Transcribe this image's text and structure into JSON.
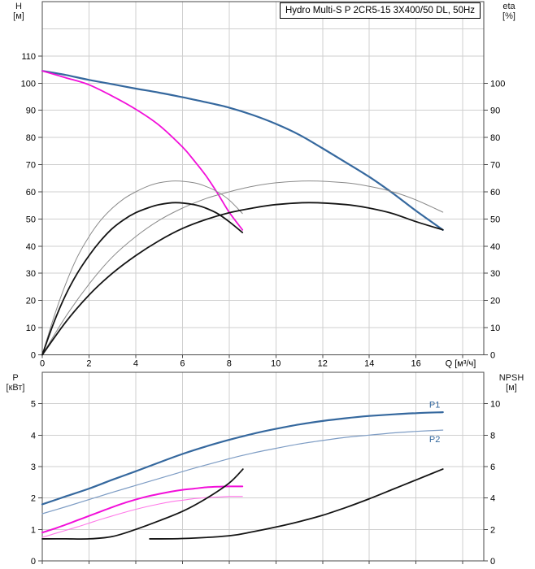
{
  "title": "Hydro Multi-S P 2CR5-15 3X400/50 DL, 50Hz",
  "colors": {
    "blue": "#35689e",
    "blue_light": "#7d9cc4",
    "magenta": "#f20fd9",
    "magenta_light": "#ff78e8",
    "black": "#141414",
    "gray": "#8a8a8a",
    "grid": "#cfcfcf",
    "axis": "#4a4a4a",
    "label": "#000000"
  },
  "chart_data": [
    {
      "type": "line",
      "id": "head-efficiency-chart",
      "title": "H-Q and efficiency curves",
      "x_axis": {
        "label": "Q [м³/ч]",
        "range": [
          0,
          18.9
        ],
        "grid_step": 2,
        "ticks": [
          0,
          2,
          4,
          6,
          8,
          10,
          12,
          14,
          16
        ],
        "show_tick_labels": true
      },
      "y_left": {
        "name": "H",
        "unit": "[м]",
        "range": [
          0,
          130
        ],
        "ticks": [
          0,
          10,
          20,
          30,
          40,
          50,
          60,
          70,
          80,
          90,
          100,
          110
        ],
        "grid": [
          10,
          20,
          30,
          40,
          50,
          60,
          70,
          80,
          90,
          100,
          110,
          120
        ]
      },
      "y_right": {
        "name": "eta",
        "unit": "[%]",
        "range": [
          0,
          130
        ],
        "ticks": [
          0,
          10,
          20,
          30,
          40,
          50,
          60,
          70,
          80,
          90,
          100
        ]
      },
      "series": [
        {
          "name": "head-two-pumps",
          "color": "blue",
          "width": 2.2,
          "axis": "left",
          "points": [
            [
              0,
              104.5
            ],
            [
              1,
              103
            ],
            [
              2,
              101.2
            ],
            [
              3,
              99.6
            ],
            [
              4,
              98
            ],
            [
              5,
              96.5
            ],
            [
              6,
              94.8
            ],
            [
              7,
              93
            ],
            [
              8,
              91
            ],
            [
              9,
              88.3
            ],
            [
              10,
              85
            ],
            [
              11,
              81
            ],
            [
              12,
              76
            ],
            [
              13,
              70.8
            ],
            [
              14,
              65.5
            ],
            [
              15,
              59.5
            ],
            [
              16,
              53
            ],
            [
              17.15,
              46
            ]
          ]
        },
        {
          "name": "head-one-pump",
          "color": "magenta",
          "width": 1.8,
          "axis": "left",
          "points": [
            [
              0,
              104.5
            ],
            [
              1,
              102
            ],
            [
              2,
              99.4
            ],
            [
              3,
              95.2
            ],
            [
              4,
              90.4
            ],
            [
              5,
              84.5
            ],
            [
              6,
              76.5
            ],
            [
              6.5,
              71.5
            ],
            [
              7,
              66
            ],
            [
              7.5,
              59.5
            ],
            [
              8,
              52.5
            ],
            [
              8.57,
              46
            ]
          ]
        },
        {
          "name": "eta-one-pump-upper",
          "color": "gray",
          "width": 1,
          "axis": "right",
          "points": [
            [
              0,
              0
            ],
            [
              0.5,
              14
            ],
            [
              1,
              26
            ],
            [
              1.5,
              36
            ],
            [
              2,
              43.5
            ],
            [
              2.5,
              49.5
            ],
            [
              3,
              54
            ],
            [
              3.5,
              57.5
            ],
            [
              4,
              60
            ],
            [
              4.5,
              62
            ],
            [
              5,
              63.3
            ],
            [
              5.7,
              64
            ],
            [
              6.5,
              63.3
            ],
            [
              7,
              62
            ],
            [
              7.5,
              60
            ],
            [
              8,
              57
            ],
            [
              8.57,
              52
            ]
          ]
        },
        {
          "name": "eta-two-pumps-upper",
          "color": "gray",
          "width": 1,
          "axis": "right",
          "points": [
            [
              0,
              0
            ],
            [
              1,
              14
            ],
            [
              2,
              26
            ],
            [
              3,
              36
            ],
            [
              4,
              43.5
            ],
            [
              5,
              49.5
            ],
            [
              6,
              54
            ],
            [
              7,
              57.5
            ],
            [
              8,
              60
            ],
            [
              9,
              62
            ],
            [
              10,
              63.3
            ],
            [
              11.4,
              64
            ],
            [
              13,
              63.3
            ],
            [
              14,
              62
            ],
            [
              15,
              60
            ],
            [
              16,
              57
            ],
            [
              17.15,
              52.5
            ]
          ]
        },
        {
          "name": "eta-one-pump-lower",
          "color": "black",
          "width": 1.8,
          "axis": "right",
          "points": [
            [
              0,
              0
            ],
            [
              0.5,
              12
            ],
            [
              1,
              22
            ],
            [
              1.5,
              30
            ],
            [
              2,
              36.5
            ],
            [
              2.5,
              42
            ],
            [
              3,
              46.5
            ],
            [
              3.5,
              49.8
            ],
            [
              4,
              52.3
            ],
            [
              4.5,
              54
            ],
            [
              5,
              55.3
            ],
            [
              5.7,
              56
            ],
            [
              6.5,
              55.3
            ],
            [
              7,
              54
            ],
            [
              7.5,
              52
            ],
            [
              8,
              49
            ],
            [
              8.57,
              45
            ]
          ]
        },
        {
          "name": "eta-two-pumps-lower",
          "color": "black",
          "width": 1.8,
          "axis": "right",
          "points": [
            [
              0,
              0
            ],
            [
              1,
              12
            ],
            [
              2,
              22
            ],
            [
              3,
              30
            ],
            [
              4,
              36.5
            ],
            [
              5,
              42
            ],
            [
              6,
              46.5
            ],
            [
              7,
              49.8
            ],
            [
              8,
              52.3
            ],
            [
              9,
              54
            ],
            [
              10,
              55.3
            ],
            [
              11.4,
              56
            ],
            [
              13,
              55.3
            ],
            [
              14,
              54
            ],
            [
              15,
              52
            ],
            [
              16,
              49
            ],
            [
              17.15,
              46
            ]
          ]
        }
      ],
      "annotations": []
    },
    {
      "type": "line",
      "id": "power-npsh-chart",
      "title": "Power and NPSH curves",
      "x_axis": {
        "label": "",
        "range": [
          0,
          18.9
        ],
        "grid_step": 2,
        "ticks": [
          0,
          2,
          4,
          6,
          8,
          10,
          12,
          14,
          16
        ],
        "show_tick_labels": false
      },
      "y_left": {
        "name": "P",
        "unit": "[кВт]",
        "range": [
          0,
          6
        ],
        "ticks": [
          0,
          1,
          2,
          3,
          4,
          5
        ],
        "grid": [
          1,
          2,
          3,
          4,
          5
        ]
      },
      "y_right": {
        "name": "NPSH",
        "unit": "[м]",
        "range": [
          0,
          12
        ],
        "ticks": [
          0,
          2,
          4,
          6,
          8,
          10
        ]
      },
      "series": [
        {
          "name": "p1-two-pumps",
          "color": "blue",
          "width": 2.2,
          "axis": "left",
          "points": [
            [
              0,
              1.8
            ],
            [
              1,
              2.05
            ],
            [
              2,
              2.3
            ],
            [
              3,
              2.58
            ],
            [
              4,
              2.85
            ],
            [
              5,
              3.13
            ],
            [
              6,
              3.4
            ],
            [
              7,
              3.64
            ],
            [
              8,
              3.85
            ],
            [
              9,
              4.04
            ],
            [
              10,
              4.2
            ],
            [
              11,
              4.34
            ],
            [
              12,
              4.45
            ],
            [
              13,
              4.54
            ],
            [
              14,
              4.61
            ],
            [
              15,
              4.66
            ],
            [
              16,
              4.7
            ],
            [
              17.15,
              4.73
            ]
          ]
        },
        {
          "name": "p2-two-pumps",
          "color": "blue_light",
          "width": 1.2,
          "axis": "left",
          "points": [
            [
              0,
              1.5
            ],
            [
              1,
              1.72
            ],
            [
              2,
              1.95
            ],
            [
              3,
              2.18
            ],
            [
              4,
              2.4
            ],
            [
              5,
              2.62
            ],
            [
              6,
              2.84
            ],
            [
              7,
              3.05
            ],
            [
              8,
              3.25
            ],
            [
              9,
              3.43
            ],
            [
              10,
              3.58
            ],
            [
              11,
              3.72
            ],
            [
              12,
              3.83
            ],
            [
              13,
              3.93
            ],
            [
              14,
              4.0
            ],
            [
              15,
              4.07
            ],
            [
              16,
              4.12
            ],
            [
              17.15,
              4.16
            ]
          ]
        },
        {
          "name": "p1-one-pump",
          "color": "magenta",
          "width": 2,
          "axis": "left",
          "points": [
            [
              0,
              0.9
            ],
            [
              0.5,
              1.02
            ],
            [
              1,
              1.15
            ],
            [
              1.5,
              1.29
            ],
            [
              2,
              1.43
            ],
            [
              2.5,
              1.57
            ],
            [
              3,
              1.71
            ],
            [
              3.5,
              1.84
            ],
            [
              4,
              1.95
            ],
            [
              4.5,
              2.05
            ],
            [
              5,
              2.13
            ],
            [
              5.5,
              2.2
            ],
            [
              6,
              2.26
            ],
            [
              6.5,
              2.3
            ],
            [
              7,
              2.34
            ],
            [
              7.5,
              2.36
            ],
            [
              8,
              2.37
            ],
            [
              8.57,
              2.37
            ]
          ]
        },
        {
          "name": "p2-one-pump",
          "color": "magenta_light",
          "width": 1.1,
          "axis": "left",
          "points": [
            [
              0,
              0.75
            ],
            [
              0.5,
              0.86
            ],
            [
              1,
              0.97
            ],
            [
              1.5,
              1.08
            ],
            [
              2,
              1.2
            ],
            [
              2.5,
              1.32
            ],
            [
              3,
              1.43
            ],
            [
              3.5,
              1.54
            ],
            [
              4,
              1.64
            ],
            [
              4.5,
              1.73
            ],
            [
              5,
              1.81
            ],
            [
              5.5,
              1.88
            ],
            [
              6,
              1.93
            ],
            [
              6.5,
              1.98
            ],
            [
              7,
              2.01
            ],
            [
              7.5,
              2.03
            ],
            [
              8,
              2.05
            ],
            [
              8.57,
              2.05
            ]
          ]
        },
        {
          "name": "npsh-one-pump",
          "color": "black",
          "width": 1.8,
          "axis": "right",
          "points": [
            [
              0,
              1.4
            ],
            [
              1,
              1.4
            ],
            [
              2,
              1.4
            ],
            [
              3,
              1.55
            ],
            [
              4,
              2.0
            ],
            [
              5,
              2.55
            ],
            [
              6,
              3.15
            ],
            [
              7,
              3.95
            ],
            [
              8,
              4.95
            ],
            [
              8.59,
              5.84
            ]
          ]
        },
        {
          "name": "npsh-two-pumps",
          "color": "black",
          "width": 1.8,
          "axis": "right",
          "points": [
            [
              4.6,
              1.4
            ],
            [
              6,
              1.42
            ],
            [
              8,
              1.6
            ],
            [
              9,
              1.85
            ],
            [
              10,
              2.15
            ],
            [
              11,
              2.5
            ],
            [
              12,
              2.9
            ],
            [
              13,
              3.4
            ],
            [
              14,
              3.95
            ],
            [
              15,
              4.55
            ],
            [
              16,
              5.15
            ],
            [
              17.15,
              5.84
            ]
          ]
        }
      ],
      "annotations": [
        {
          "text": "P1",
          "q": 16.8,
          "v": 4.98,
          "axis": "left",
          "color": "blue"
        },
        {
          "text": "P2",
          "q": 16.8,
          "v": 3.88,
          "axis": "left",
          "color": "blue"
        }
      ]
    }
  ]
}
